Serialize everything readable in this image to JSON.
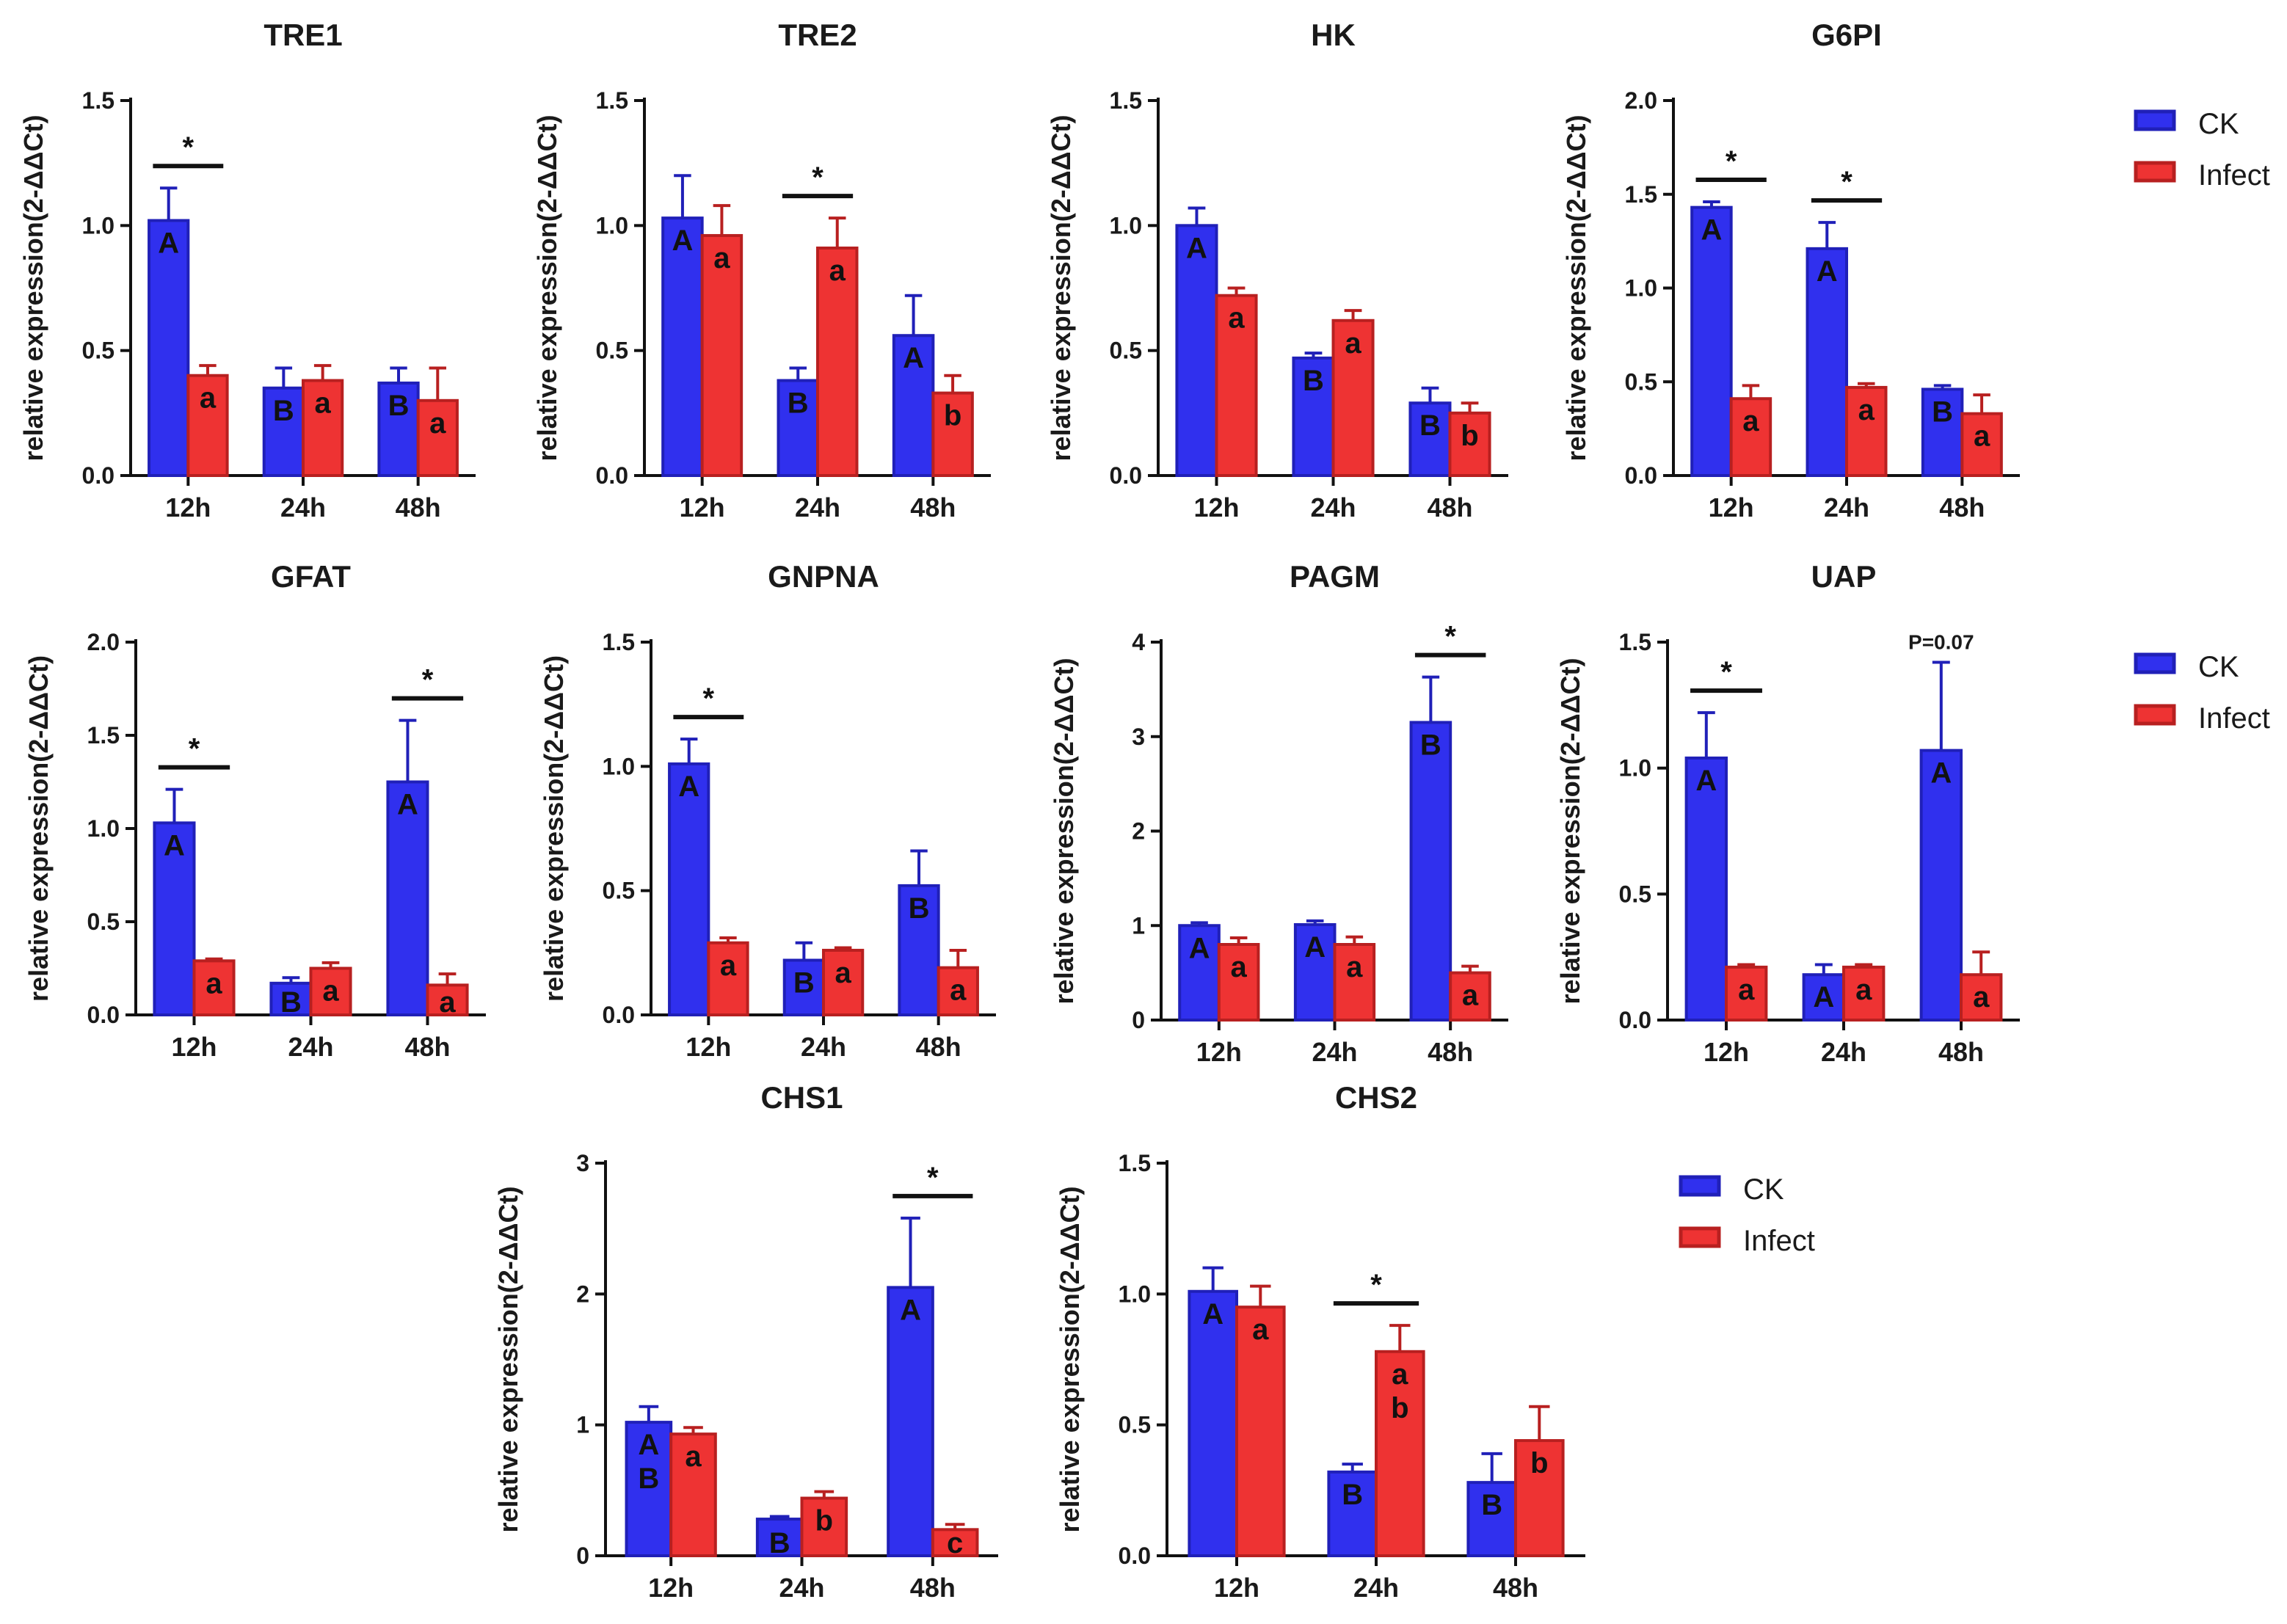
{
  "chart_data": [
    {
      "type": "bar",
      "title": "TRE1",
      "ylabel": "relative expression(2-ΔΔCt)",
      "categories": [
        "12h",
        "24h",
        "48h"
      ],
      "ylim": [
        0,
        1.5
      ],
      "yticks": [
        "0.0",
        "0.5",
        "1.0",
        "1.5"
      ],
      "series": [
        {
          "name": "CK",
          "values": [
            1.02,
            0.35,
            0.37
          ],
          "errors": [
            0.13,
            0.08,
            0.06
          ],
          "letters": [
            "A",
            "B",
            "B"
          ]
        },
        {
          "name": "Infect",
          "values": [
            0.4,
            0.38,
            0.3
          ],
          "errors": [
            0.04,
            0.06,
            0.13
          ],
          "letters": [
            "a",
            "a",
            "a"
          ]
        }
      ],
      "significance": [
        {
          "category": "12h",
          "label": "*"
        }
      ]
    },
    {
      "type": "bar",
      "title": "TRE2",
      "ylabel": "relative expression(2-ΔΔCt)",
      "categories": [
        "12h",
        "24h",
        "48h"
      ],
      "ylim": [
        0,
        1.5
      ],
      "yticks": [
        "0.0",
        "0.5",
        "1.0",
        "1.5"
      ],
      "series": [
        {
          "name": "CK",
          "values": [
            1.03,
            0.38,
            0.56
          ],
          "errors": [
            0.17,
            0.05,
            0.16
          ],
          "letters": [
            "A",
            "B",
            "A"
          ]
        },
        {
          "name": "Infect",
          "values": [
            0.96,
            0.91,
            0.33
          ],
          "errors": [
            0.12,
            0.12,
            0.07
          ],
          "letters": [
            "a",
            "a",
            "b"
          ]
        }
      ],
      "significance": [
        {
          "category": "24h",
          "label": "*"
        }
      ]
    },
    {
      "type": "bar",
      "title": "HK",
      "ylabel": "relative expression(2-ΔΔCt)",
      "categories": [
        "12h",
        "24h",
        "48h"
      ],
      "ylim": [
        0,
        1.5
      ],
      "yticks": [
        "0.0",
        "0.5",
        "1.0",
        "1.5"
      ],
      "series": [
        {
          "name": "CK",
          "values": [
            1.0,
            0.47,
            0.29
          ],
          "errors": [
            0.07,
            0.02,
            0.06
          ],
          "letters": [
            "A",
            "B",
            "B"
          ]
        },
        {
          "name": "Infect",
          "values": [
            0.72,
            0.62,
            0.25
          ],
          "errors": [
            0.03,
            0.04,
            0.04
          ],
          "letters": [
            "a",
            "a",
            "b"
          ]
        }
      ],
      "significance": []
    },
    {
      "type": "bar",
      "title": "G6PI",
      "ylabel": "relative expression(2-ΔΔCt)",
      "categories": [
        "12h",
        "24h",
        "48h"
      ],
      "ylim": [
        0,
        2.0
      ],
      "yticks": [
        "0.0",
        "0.5",
        "1.0",
        "1.5",
        "2.0"
      ],
      "series": [
        {
          "name": "CK",
          "values": [
            1.43,
            1.21,
            0.46
          ],
          "errors": [
            0.03,
            0.14,
            0.02
          ],
          "letters": [
            "A",
            "A",
            "B"
          ]
        },
        {
          "name": "Infect",
          "values": [
            0.41,
            0.47,
            0.33
          ],
          "errors": [
            0.07,
            0.02,
            0.1
          ],
          "letters": [
            "a",
            "a",
            "a"
          ]
        }
      ],
      "significance": [
        {
          "category": "12h",
          "label": "*"
        },
        {
          "category": "24h",
          "label": "*"
        }
      ]
    },
    {
      "type": "bar",
      "title": "GFAT",
      "ylabel": "relative expression(2-ΔΔCt)",
      "categories": [
        "12h",
        "24h",
        "48h"
      ],
      "ylim": [
        0,
        2.0
      ],
      "yticks": [
        "0.0",
        "0.5",
        "1.0",
        "1.5",
        "2.0"
      ],
      "series": [
        {
          "name": "CK",
          "values": [
            1.03,
            0.17,
            1.25
          ],
          "errors": [
            0.18,
            0.03,
            0.33
          ],
          "letters": [
            "A",
            "B",
            "A"
          ]
        },
        {
          "name": "Infect",
          "values": [
            0.29,
            0.25,
            0.16
          ],
          "errors": [
            0.01,
            0.03,
            0.06
          ],
          "letters": [
            "a",
            "a",
            "a"
          ]
        }
      ],
      "significance": [
        {
          "category": "12h",
          "label": "*"
        },
        {
          "category": "48h",
          "label": "*"
        }
      ]
    },
    {
      "type": "bar",
      "title": "GNPNA",
      "ylabel": "relative expression(2-ΔΔCt)",
      "categories": [
        "12h",
        "24h",
        "48h"
      ],
      "ylim": [
        0,
        1.5
      ],
      "yticks": [
        "0.0",
        "0.5",
        "1.0",
        "1.5"
      ],
      "series": [
        {
          "name": "CK",
          "values": [
            1.01,
            0.22,
            0.52
          ],
          "errors": [
            0.1,
            0.07,
            0.14
          ],
          "letters": [
            "A",
            "B",
            "B"
          ]
        },
        {
          "name": "Infect",
          "values": [
            0.29,
            0.26,
            0.19
          ],
          "errors": [
            0.02,
            0.01,
            0.07
          ],
          "letters": [
            "a",
            "a",
            "a"
          ]
        }
      ],
      "significance": [
        {
          "category": "12h",
          "label": "*"
        }
      ]
    },
    {
      "type": "bar",
      "title": "PAGM",
      "ylabel": "relative expression(2-ΔΔCt)",
      "categories": [
        "12h",
        "24h",
        "48h"
      ],
      "ylim": [
        0,
        4
      ],
      "yticks": [
        "0",
        "1",
        "2",
        "3",
        "4"
      ],
      "series": [
        {
          "name": "CK",
          "values": [
            1.0,
            1.01,
            3.15
          ],
          "errors": [
            0.03,
            0.04,
            0.48
          ],
          "letters": [
            "A",
            "A",
            "B"
          ]
        },
        {
          "name": "Infect",
          "values": [
            0.8,
            0.8,
            0.5
          ],
          "errors": [
            0.07,
            0.08,
            0.07
          ],
          "letters": [
            "a",
            "a",
            "a"
          ]
        }
      ],
      "significance": [
        {
          "category": "48h",
          "label": "*"
        }
      ]
    },
    {
      "type": "bar",
      "title": "UAP",
      "ylabel": "relative expression(2-ΔΔCt)",
      "categories": [
        "12h",
        "24h",
        "48h"
      ],
      "ylim": [
        0,
        1.5
      ],
      "yticks": [
        "0.0",
        "0.5",
        "1.0",
        "1.5"
      ],
      "series": [
        {
          "name": "CK",
          "values": [
            1.04,
            0.18,
            1.07
          ],
          "errors": [
            0.18,
            0.04,
            0.35
          ],
          "letters": [
            "A",
            "A",
            "A"
          ]
        },
        {
          "name": "Infect",
          "values": [
            0.21,
            0.21,
            0.18
          ],
          "errors": [
            0.01,
            0.01,
            0.09
          ],
          "letters": [
            "a",
            "a",
            "a"
          ]
        }
      ],
      "significance": [
        {
          "category": "12h",
          "label": "*"
        }
      ],
      "note": {
        "category": "48h",
        "label": "P=0.07"
      }
    },
    {
      "type": "bar",
      "title": "CHS1",
      "ylabel": "relative expression(2-ΔΔCt)",
      "categories": [
        "12h",
        "24h",
        "48h"
      ],
      "ylim": [
        0,
        3
      ],
      "yticks": [
        "0",
        "1",
        "2",
        "3"
      ],
      "series": [
        {
          "name": "CK",
          "values": [
            1.02,
            0.28,
            2.05
          ],
          "errors": [
            0.12,
            0.02,
            0.53
          ],
          "letters": [
            "AB",
            "B",
            "A"
          ]
        },
        {
          "name": "Infect",
          "values": [
            0.93,
            0.44,
            0.2
          ],
          "errors": [
            0.05,
            0.05,
            0.04
          ],
          "letters": [
            "a",
            "b",
            "c"
          ]
        }
      ],
      "significance": [
        {
          "category": "48h",
          "label": "*"
        }
      ]
    },
    {
      "type": "bar",
      "title": "CHS2",
      "ylabel": "relative expression(2-ΔΔCt)",
      "categories": [
        "12h",
        "24h",
        "48h"
      ],
      "ylim": [
        0,
        1.5
      ],
      "yticks": [
        "0.0",
        "0.5",
        "1.0",
        "1.5"
      ],
      "series": [
        {
          "name": "CK",
          "values": [
            1.01,
            0.32,
            0.28
          ],
          "errors": [
            0.09,
            0.03,
            0.11
          ],
          "letters": [
            "A",
            "B",
            "B"
          ]
        },
        {
          "name": "Infect",
          "values": [
            0.95,
            0.78,
            0.44
          ],
          "errors": [
            0.08,
            0.1,
            0.13
          ],
          "letters": [
            "a",
            "ab",
            "b"
          ]
        }
      ],
      "significance": [
        {
          "category": "24h",
          "label": "*"
        }
      ]
    }
  ],
  "legends": [
    {
      "items": [
        {
          "label": "CK"
        },
        {
          "label": "Infect"
        }
      ]
    },
    {
      "items": [
        {
          "label": "CK"
        },
        {
          "label": "Infect"
        }
      ]
    },
    {
      "items": [
        {
          "label": "CK"
        },
        {
          "label": "Infect"
        }
      ]
    }
  ],
  "colors": {
    "CK": "#3030ee",
    "CK_edge": "#2020b8",
    "Infect": "#ee3333",
    "Infect_edge": "#b82020",
    "axis": "#111111"
  }
}
